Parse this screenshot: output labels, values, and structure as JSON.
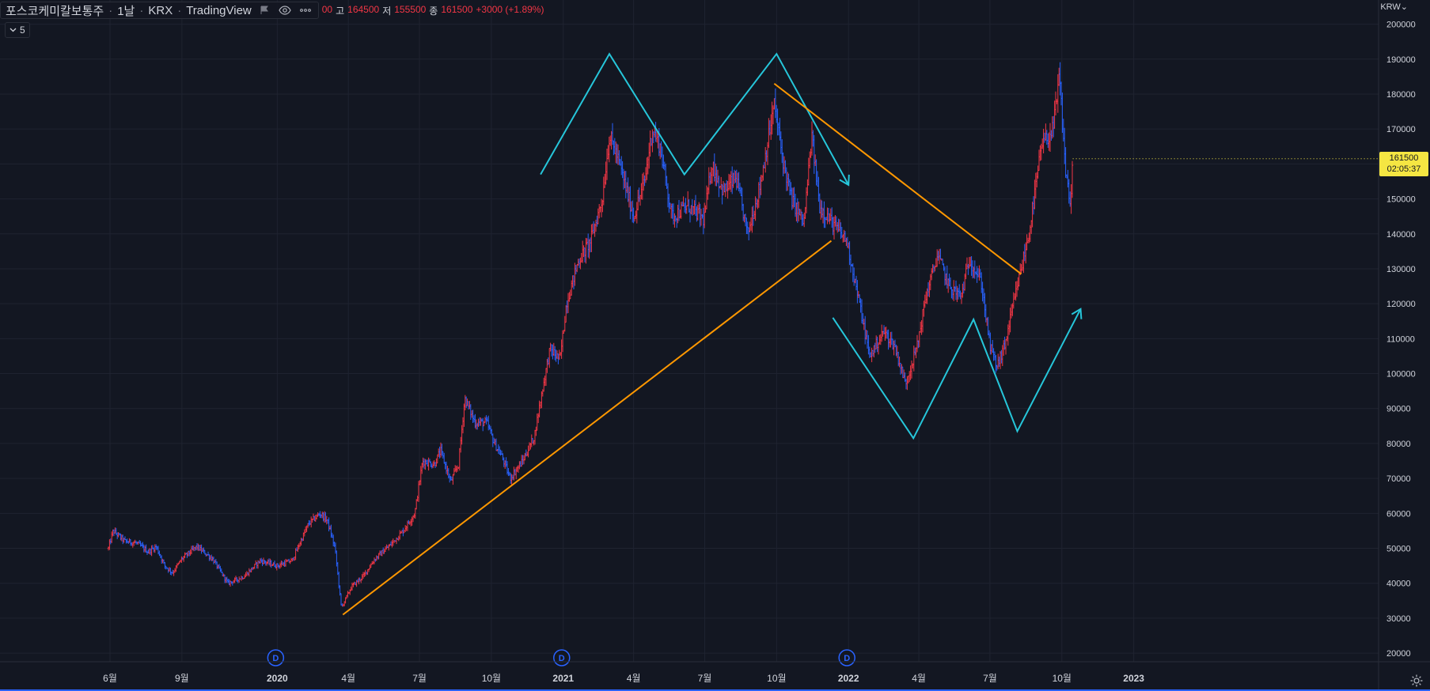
{
  "legend": {
    "symbol": "포스코케미칼보통주",
    "interval": "1날",
    "exchange": "KRX",
    "source": "TradingView",
    "open_label": "",
    "open_value": "00",
    "high_label": "고",
    "high_value": "164500",
    "low_label": "저",
    "low_value": "155500",
    "close_label": "종",
    "close_value": "161500",
    "change": "+3000 (+1.89%)",
    "icons": [
      "flag-icon",
      "eye-icon",
      "more-icon"
    ]
  },
  "indicator_toggle": {
    "count": "5"
  },
  "currency": "KRW",
  "last_price": {
    "price": "161500",
    "countdown": "02:05:37",
    "value": 161500,
    "color": "#f5e642"
  },
  "colors": {
    "background": "#131722",
    "grid": "#1f2330",
    "up": "#f23645",
    "down": "#2962ff",
    "pattern_cyan": "#26c6da",
    "trend_orange": "#ff9800",
    "dividend_badge": "#2962ff"
  },
  "chart_data": {
    "type": "ohlc",
    "title": "",
    "xlabel": "",
    "ylabel": "",
    "ylim": [
      20000,
      200000
    ],
    "yticks": [
      20000,
      30000,
      40000,
      50000,
      60000,
      70000,
      80000,
      90000,
      100000,
      110000,
      120000,
      130000,
      140000,
      150000,
      160000,
      170000,
      180000,
      190000,
      200000
    ],
    "x_axis": {
      "start": "2019-06-01",
      "end": "2023-02-01",
      "ticks": [
        {
          "date": "2019-06-01",
          "label": "6월"
        },
        {
          "date": "2019-09-01",
          "label": "9월"
        },
        {
          "date": "2020-01-01",
          "label": "2020"
        },
        {
          "date": "2020-04-01",
          "label": "4월"
        },
        {
          "date": "2020-07-01",
          "label": "7월"
        },
        {
          "date": "2020-10-01",
          "label": "10월"
        },
        {
          "date": "2021-01-01",
          "label": "2021"
        },
        {
          "date": "2021-04-01",
          "label": "4월"
        },
        {
          "date": "2021-07-01",
          "label": "7월"
        },
        {
          "date": "2021-10-01",
          "label": "10월"
        },
        {
          "date": "2022-01-01",
          "label": "2022"
        },
        {
          "date": "2022-04-01",
          "label": "4월"
        },
        {
          "date": "2022-07-01",
          "label": "7월"
        },
        {
          "date": "2022-10-01",
          "label": "10월"
        },
        {
          "date": "2023-01-01",
          "label": "2023"
        }
      ]
    },
    "price_path": [
      [
        "2019-05-30",
        50000
      ],
      [
        "2019-06-05",
        55000
      ],
      [
        "2019-06-20",
        52000
      ],
      [
        "2019-07-05",
        51500
      ],
      [
        "2019-07-20",
        49000
      ],
      [
        "2019-07-30",
        50500
      ],
      [
        "2019-08-10",
        45000
      ],
      [
        "2019-08-20",
        43000
      ],
      [
        "2019-09-01",
        47000
      ],
      [
        "2019-09-20",
        50500
      ],
      [
        "2019-10-10",
        47000
      ],
      [
        "2019-10-30",
        40000
      ],
      [
        "2019-11-20",
        42000
      ],
      [
        "2019-12-10",
        46500
      ],
      [
        "2020-01-01",
        45000
      ],
      [
        "2020-01-20",
        46500
      ],
      [
        "2020-02-10",
        57000
      ],
      [
        "2020-02-25",
        60000
      ],
      [
        "2020-03-05",
        58000
      ],
      [
        "2020-03-15",
        50000
      ],
      [
        "2020-03-23",
        33000
      ],
      [
        "2020-04-05",
        39000
      ],
      [
        "2020-04-20",
        42000
      ],
      [
        "2020-05-05",
        47000
      ],
      [
        "2020-05-25",
        51000
      ],
      [
        "2020-06-10",
        55000
      ],
      [
        "2020-06-25",
        60000
      ],
      [
        "2020-07-05",
        75000
      ],
      [
        "2020-07-20",
        74000
      ],
      [
        "2020-07-28",
        78000
      ],
      [
        "2020-08-10",
        69000
      ],
      [
        "2020-08-20",
        74000
      ],
      [
        "2020-08-28",
        93000
      ],
      [
        "2020-09-10",
        86000
      ],
      [
        "2020-09-25",
        86000
      ],
      [
        "2020-10-05",
        80000
      ],
      [
        "2020-10-15",
        76000
      ],
      [
        "2020-10-25",
        70000
      ],
      [
        "2020-11-10",
        75000
      ],
      [
        "2020-11-25",
        82000
      ],
      [
        "2020-12-05",
        95000
      ],
      [
        "2020-12-15",
        107000
      ],
      [
        "2020-12-28",
        104000
      ],
      [
        "2021-01-05",
        120000
      ],
      [
        "2021-01-20",
        132000
      ],
      [
        "2021-02-05",
        138000
      ],
      [
        "2021-02-20",
        150000
      ],
      [
        "2021-03-01",
        168000
      ],
      [
        "2021-03-10",
        163000
      ],
      [
        "2021-03-20",
        155000
      ],
      [
        "2021-04-01",
        145000
      ],
      [
        "2021-04-15",
        155000
      ],
      [
        "2021-04-25",
        170000
      ],
      [
        "2021-05-05",
        165000
      ],
      [
        "2021-05-20",
        145000
      ],
      [
        "2021-06-10",
        148000
      ],
      [
        "2021-06-30",
        144000
      ],
      [
        "2021-07-10",
        160000
      ],
      [
        "2021-07-25",
        152000
      ],
      [
        "2021-08-10",
        156000
      ],
      [
        "2021-08-25",
        140000
      ],
      [
        "2021-09-10",
        154000
      ],
      [
        "2021-09-28",
        177000
      ],
      [
        "2021-10-10",
        160000
      ],
      [
        "2021-10-20",
        150000
      ],
      [
        "2021-11-05",
        143000
      ],
      [
        "2021-11-15",
        168000
      ],
      [
        "2021-11-25",
        148000
      ],
      [
        "2021-12-15",
        142000
      ],
      [
        "2021-12-30",
        138000
      ],
      [
        "2022-01-15",
        120000
      ],
      [
        "2022-01-28",
        105000
      ],
      [
        "2022-02-15",
        112000
      ],
      [
        "2022-03-01",
        108000
      ],
      [
        "2022-03-15",
        97000
      ],
      [
        "2022-03-30",
        108000
      ],
      [
        "2022-04-10",
        122000
      ],
      [
        "2022-04-25",
        134000
      ],
      [
        "2022-05-10",
        125000
      ],
      [
        "2022-05-25",
        122000
      ],
      [
        "2022-06-05",
        133000
      ],
      [
        "2022-06-20",
        126000
      ],
      [
        "2022-07-01",
        108000
      ],
      [
        "2022-07-10",
        102000
      ],
      [
        "2022-07-20",
        108000
      ],
      [
        "2022-08-05",
        125000
      ],
      [
        "2022-08-20",
        140000
      ],
      [
        "2022-09-05",
        165000
      ],
      [
        "2022-09-20",
        170000
      ],
      [
        "2022-09-28",
        185000
      ],
      [
        "2022-10-05",
        160000
      ],
      [
        "2022-10-12",
        148000
      ],
      [
        "2022-10-15",
        161500
      ]
    ],
    "annotations": {
      "m_pattern": [
        [
          "2020-12-03",
          157000
        ],
        [
          "2021-03-01",
          191500
        ],
        [
          "2021-06-05",
          157000
        ],
        [
          "2021-10-01",
          191500
        ],
        [
          "2022-01-01",
          154000
        ]
      ],
      "m_arrow_tip": [
        "2022-01-01",
        154000
      ],
      "w_pattern": [
        [
          "2021-12-12",
          116000
        ],
        [
          "2022-03-25",
          81500
        ],
        [
          "2022-06-10",
          115500
        ],
        [
          "2022-08-05",
          83500
        ],
        [
          "2022-10-25",
          118500
        ]
      ],
      "w_arrow_tip": [
        "2022-10-25",
        118500
      ],
      "support_line": [
        [
          "2020-03-25",
          31000
        ],
        [
          "2021-12-10",
          138000
        ]
      ],
      "resistance_line": [
        [
          "2021-09-28",
          183000
        ],
        [
          "2022-08-10",
          128500
        ]
      ]
    },
    "dividend_markers": [
      {
        "date": "2019-12-30",
        "label": "D"
      },
      {
        "date": "2020-12-30",
        "label": "D"
      },
      {
        "date": "2021-12-30",
        "label": "D"
      }
    ]
  }
}
